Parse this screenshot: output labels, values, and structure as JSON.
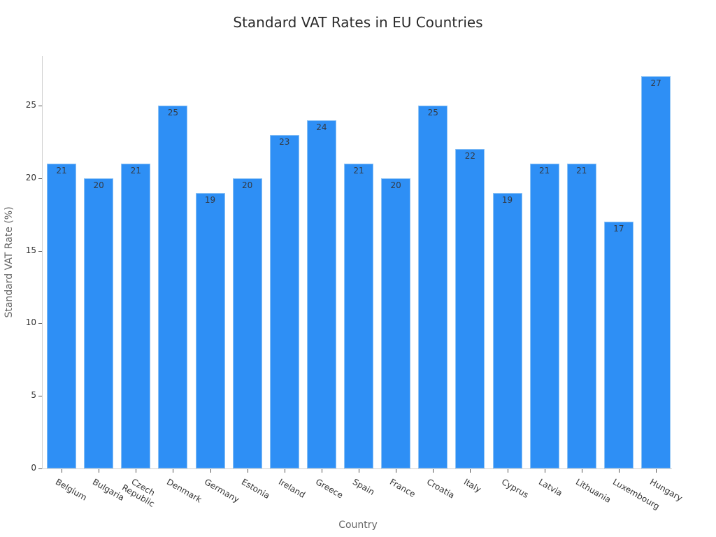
{
  "chart_data": {
    "type": "bar",
    "title": "Standard VAT Rates in EU Countries",
    "xlabel": "Country",
    "ylabel": "Standard VAT Rate (%)",
    "categories": [
      "Belgium",
      "Bulgaria",
      "Czech Republic",
      "Denmark",
      "Germany",
      "Estonia",
      "Ireland",
      "Greece",
      "Spain",
      "France",
      "Croatia",
      "Italy",
      "Cyprus",
      "Latvia",
      "Lithuania",
      "Luxembourg",
      "Hungary"
    ],
    "values": [
      21,
      20,
      21,
      25,
      19,
      20,
      23,
      24,
      21,
      20,
      25,
      22,
      19,
      21,
      21,
      17,
      27
    ],
    "ylim": [
      0,
      28.4
    ],
    "yticks": [
      0,
      5,
      10,
      15,
      20,
      25
    ],
    "grid": false,
    "legend": null,
    "data_labels": true,
    "bar_color": "#2e8ff5"
  },
  "labels": {
    "title": "Standard VAT Rates in EU Countries",
    "xlabel": "Country",
    "ylabel": "Standard VAT Rate (%)"
  },
  "tick_display": {
    "x": [
      "Belgium",
      "Bulgaria",
      "Czech\nRepublic",
      "Denmark",
      "Germany",
      "Estonia",
      "Ireland",
      "Greece",
      "Spain",
      "France",
      "Croatia",
      "Italy",
      "Cyprus",
      "Latvia",
      "Lithuania",
      "Luxembourg",
      "Hungary"
    ]
  }
}
